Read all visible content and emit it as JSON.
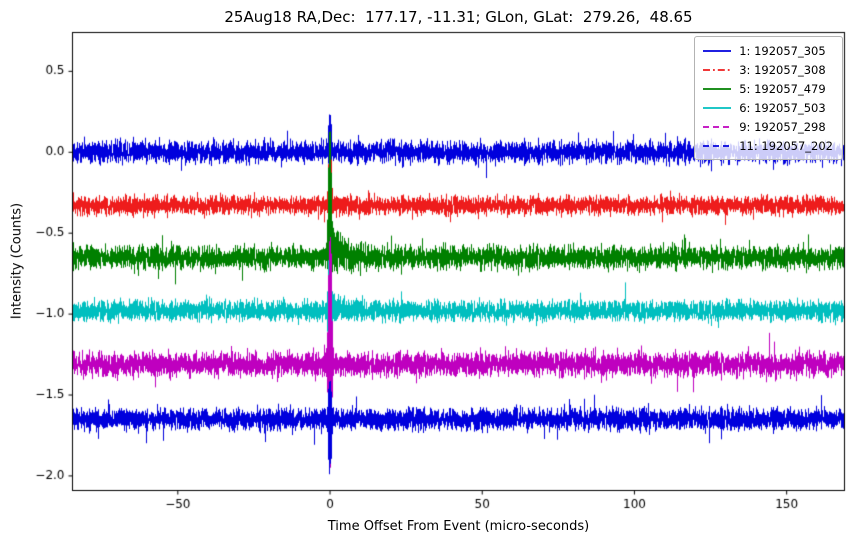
{
  "chart_data": {
    "type": "line",
    "title": "25Aug18 RA,Dec:  177.17, -11.31; GLon, GLat:  279.26,  48.65",
    "xlabel": "Time Offset From Event (micro-seconds)",
    "ylabel": "Intensity (Counts)",
    "xlim": [
      -84.6,
      169.0
    ],
    "ylim": [
      -2.09,
      0.74
    ],
    "xticks": {
      "values": [
        -50,
        0,
        50,
        100,
        150
      ],
      "labels": [
        "−50",
        "0",
        "50",
        "100",
        "150"
      ]
    },
    "yticks": {
      "values": [
        0.5,
        0.0,
        -0.5,
        -1.0,
        -1.5,
        -2.0
      ],
      "labels": [
        "0.5",
        "0.0",
        "−0.5",
        "−1.0",
        "−1.5",
        "−2.0"
      ]
    },
    "grid": false,
    "legend_position": "upper right",
    "event_time": 0,
    "series": [
      {
        "name": "1: 192057_305",
        "color": "#0000dd",
        "linestyle": "solid",
        "baseline": 0.0,
        "sigma": 0.032,
        "spike_up": 0.26,
        "spike_down": 0.1,
        "tail": 0.0,
        "tail_tc": 3
      },
      {
        "name": "3: 192057_308",
        "color": "#ee1c1c",
        "linestyle": "dashdot",
        "baseline": -0.33,
        "sigma": 0.028,
        "spike_up": 0.38,
        "spike_down": 0.18,
        "tail": 0.0,
        "tail_tc": 3
      },
      {
        "name": "5: 192057_479",
        "color": "#008000",
        "linestyle": "solid",
        "baseline": -0.65,
        "sigma": 0.034,
        "spike_up": 0.82,
        "spike_down": 0.25,
        "tail": 0.1,
        "tail_tc": 4
      },
      {
        "name": "6: 192057_503",
        "color": "#00bfbf",
        "linestyle": "solid",
        "baseline": -0.98,
        "sigma": 0.03,
        "spike_up": 0.5,
        "spike_down": 0.45,
        "tail": 0.05,
        "tail_tc": 3
      },
      {
        "name": "9: 192057_298",
        "color": "#bf00bf",
        "linestyle": "dashed",
        "baseline": -1.31,
        "sigma": 0.036,
        "spike_up": 0.9,
        "spike_down": 0.7,
        "tail": 0.0,
        "tail_tc": 3
      },
      {
        "name": "11: 192057_202",
        "color": "#0000dd",
        "linestyle": "dashed",
        "baseline": -1.65,
        "sigma": 0.032,
        "spike_up": 0.28,
        "spike_down": 0.36,
        "tail": 0.0,
        "tail_tc": 3
      }
    ],
    "colors": {
      "background": "#ffffff",
      "axis": "#000000",
      "tick_label": "#000000",
      "legend_border": "#b3b3b3"
    }
  }
}
